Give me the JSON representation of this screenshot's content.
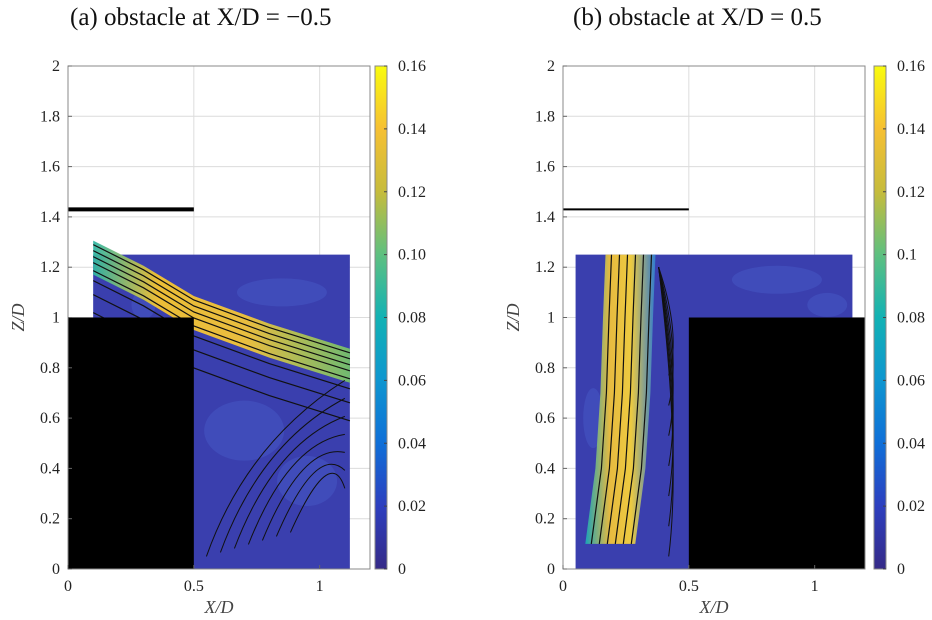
{
  "panels": [
    {
      "title": "(a) obstacle at X/D = −0.5"
    },
    {
      "title": "(b) obstacle at X/D = 0.5"
    }
  ],
  "chart_data": [
    {
      "type": "heatmap",
      "title": "(a) obstacle at X/D = −0.5",
      "xlabel": "X/D",
      "ylabel": "Z/D",
      "xlim": [
        0,
        1.2
      ],
      "ylim": [
        0,
        2
      ],
      "x_ticks": [
        "0",
        "0.5",
        "1"
      ],
      "y_ticks": [
        "0",
        "0.2",
        "0.4",
        "0.6",
        "0.8",
        "1",
        "1.2",
        "1.4",
        "1.6",
        "1.8",
        "2"
      ],
      "colorbar": {
        "range": [
          0,
          0.16
        ],
        "ticks": [
          "0",
          "0.02",
          "0.04",
          "0.06",
          "0.08",
          "0.10",
          "0.12",
          "0.14",
          "0.16"
        ]
      },
      "obstacle": {
        "x": [
          0,
          0.5
        ],
        "z": [
          0,
          1.0
        ]
      },
      "reference_line": {
        "x": [
          0,
          0.5
        ],
        "z": 1.43
      },
      "measurement_window": {
        "x": [
          0.1,
          1.12
        ],
        "z": [
          0,
          1.25
        ]
      },
      "shear_layer": {
        "x": [
          0.1,
          0.3,
          0.5,
          0.8,
          1.12
        ],
        "z": [
          1.25,
          1.15,
          1.03,
          0.92,
          0.82
        ],
        "peak_value": 0.15
      },
      "grid": true
    },
    {
      "type": "heatmap",
      "title": "(b) obstacle at X/D = 0.5",
      "xlabel": "X/D",
      "ylabel": "Z/D",
      "xlim": [
        0,
        1.2
      ],
      "ylim": [
        0,
        2
      ],
      "x_ticks": [
        "0",
        "0.5",
        "1"
      ],
      "y_ticks": [
        "0",
        "0.2",
        "0.4",
        "0.6",
        "0.8",
        "1",
        "1.2",
        "1.4",
        "1.6",
        "1.8",
        "2"
      ],
      "colorbar": {
        "range": [
          0,
          0.16
        ],
        "ticks": [
          "0",
          "0.02",
          "0.04",
          "0.06",
          "0.08",
          "0.1",
          "0.12",
          "0.14",
          "0.16"
        ]
      },
      "obstacle": {
        "x": [
          0.5,
          1.2
        ],
        "z": [
          0,
          1.0
        ]
      },
      "reference_line": {
        "x": [
          0,
          0.5
        ],
        "z": 1.43
      },
      "measurement_window": {
        "x": [
          0.05,
          1.15
        ],
        "z": [
          0,
          1.25
        ]
      },
      "shear_layer": {
        "x": [
          0.28,
          0.27,
          0.26,
          0.24,
          0.2
        ],
        "z": [
          1.25,
          1.0,
          0.7,
          0.4,
          0.1
        ],
        "peak_value": 0.15
      },
      "grid": true
    }
  ]
}
